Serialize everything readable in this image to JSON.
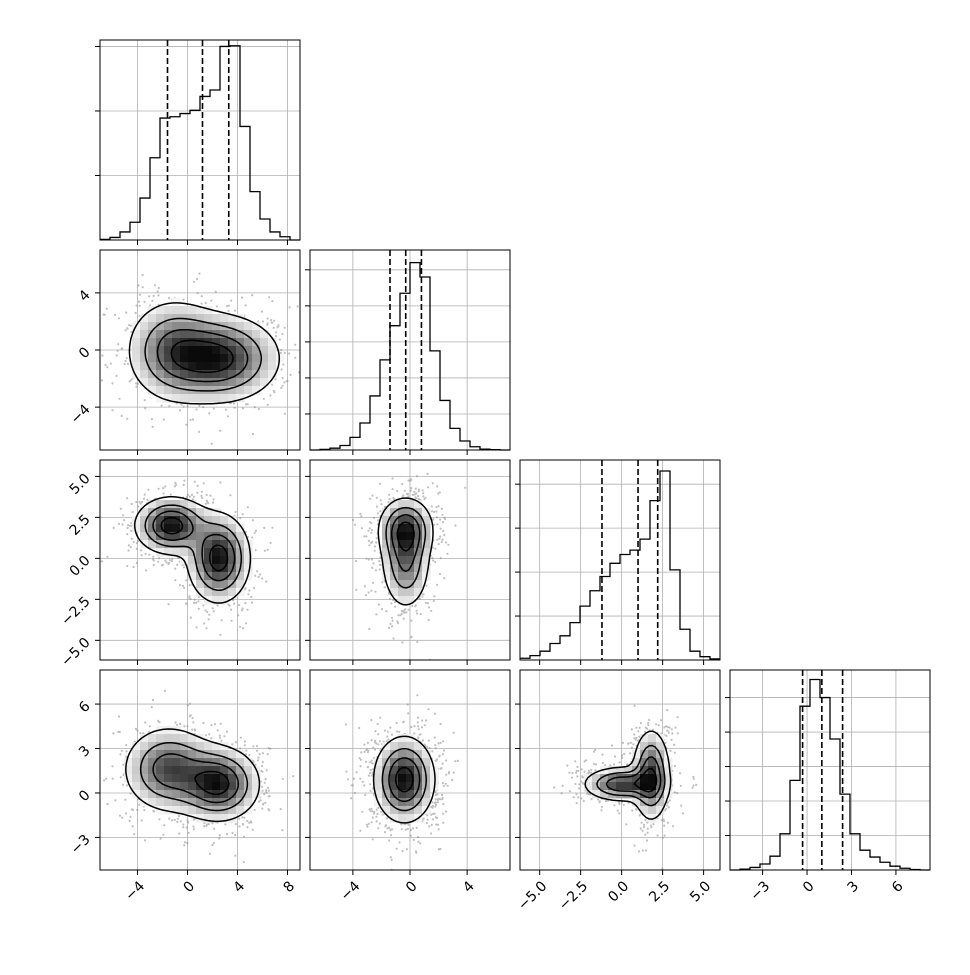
{
  "chart_data": {
    "type": "corner-plot",
    "parameters": 4,
    "grid": true,
    "axes": [
      {
        "range": [
          -7,
          9
        ],
        "ticks": [
          -4,
          0,
          4,
          8
        ],
        "tick_labels": [
          "−4",
          "0",
          "4",
          "8"
        ]
      },
      {
        "range": [
          -7,
          7
        ],
        "ticks": [
          -4,
          0,
          4
        ],
        "tick_labels": [
          "−4",
          "0",
          "4"
        ]
      },
      {
        "range": [
          -6.2,
          6.0
        ],
        "ticks": [
          -5.0,
          -2.5,
          0.0,
          2.5,
          5.0
        ],
        "tick_labels": [
          "−5.0",
          "−2.5",
          "0.0",
          "2.5",
          "5.0"
        ]
      },
      {
        "range": [
          -5.2,
          8.3
        ],
        "ticks": [
          -3,
          0,
          3,
          6
        ],
        "tick_labels": [
          "−3",
          "0",
          "3",
          "6"
        ]
      }
    ],
    "quantiles": [
      [
        -1.6,
        1.2,
        3.3
      ],
      [
        -1.4,
        -0.3,
        0.8
      ],
      [
        -1.2,
        1.0,
        2.2
      ],
      [
        -0.3,
        1.0,
        2.4
      ]
    ],
    "histograms": [
      {
        "bin_start": -7,
        "bin_width": 0.8,
        "counts": [
          2,
          8,
          25,
          55,
          130,
          255,
          378,
          382,
          392,
          402,
          445,
          465,
          600,
          602,
          352,
          150,
          65,
          25,
          10,
          0
        ],
        "ymax": 620,
        "grid_y": [
          200,
          400,
          600
        ]
      },
      {
        "bin_start": -7,
        "bin_width": 0.7,
        "counts": [
          0,
          3,
          10,
          25,
          70,
          150,
          300,
          500,
          690,
          870,
          1040,
          960,
          550,
          275,
          120,
          50,
          18,
          5,
          2,
          0
        ],
        "ymax": 1110,
        "grid_y": [
          200,
          400,
          600,
          800,
          1000
        ]
      },
      {
        "bin_start": -6.2,
        "bin_width": 0.61,
        "counts": [
          8,
          20,
          40,
          75,
          110,
          170,
          245,
          315,
          380,
          440,
          480,
          500,
          550,
          725,
          860,
          410,
          140,
          40,
          15,
          5
        ],
        "ymax": 910,
        "grid_y": [
          200,
          400,
          600,
          800
        ]
      },
      {
        "bin_start": -5.2,
        "bin_width": 0.675,
        "counts": [
          0,
          5,
          15,
          35,
          80,
          210,
          520,
          950,
          1105,
          1000,
          760,
          440,
          210,
          115,
          75,
          45,
          22,
          10,
          3,
          0
        ],
        "ymax": 1160,
        "grid_y": [
          200,
          400,
          600,
          800,
          1000
        ]
      }
    ],
    "pairs": [
      {
        "row": 1,
        "col": 0,
        "blobs": [
          {
            "cx": 2.6,
            "cy": -0.6,
            "sx": 2.5,
            "sy": 1.6,
            "w": 0.6
          },
          {
            "cx": -1.2,
            "cy": 0.0,
            "sx": 2.0,
            "sy": 1.9,
            "w": 0.4
          }
        ]
      },
      {
        "row": 2,
        "col": 0,
        "blobs": [
          {
            "cx": -1.3,
            "cy": 2.0,
            "sx": 1.5,
            "sy": 0.9,
            "w": 0.5
          },
          {
            "cx": 2.5,
            "cy": 0.0,
            "sx": 1.3,
            "sy": 1.4,
            "w": 0.5
          }
        ]
      },
      {
        "row": 2,
        "col": 1,
        "blobs": [
          {
            "cx": -0.3,
            "cy": 1.8,
            "sx": 1.0,
            "sy": 1.0,
            "w": 0.55
          },
          {
            "cx": -0.3,
            "cy": -0.3,
            "sx": 0.9,
            "sy": 1.5,
            "w": 0.45
          }
        ]
      },
      {
        "row": 3,
        "col": 0,
        "blobs": [
          {
            "cx": 2.5,
            "cy": 0.6,
            "sx": 1.7,
            "sy": 1.3,
            "w": 0.55
          },
          {
            "cx": -1.5,
            "cy": 1.6,
            "sx": 1.9,
            "sy": 1.5,
            "w": 0.45
          }
        ]
      },
      {
        "row": 3,
        "col": 1,
        "blobs": [
          {
            "cx": -0.4,
            "cy": 0.9,
            "sx": 1.1,
            "sy": 1.5,
            "w": 1.0
          }
        ]
      },
      {
        "row": 3,
        "col": 2,
        "blobs": [
          {
            "cx": 1.8,
            "cy": 1.2,
            "sx": 0.6,
            "sy": 1.6,
            "w": 0.5
          },
          {
            "cx": 0.0,
            "cy": 0.6,
            "sx": 1.2,
            "sy": 0.6,
            "w": 0.5
          }
        ]
      }
    ]
  }
}
